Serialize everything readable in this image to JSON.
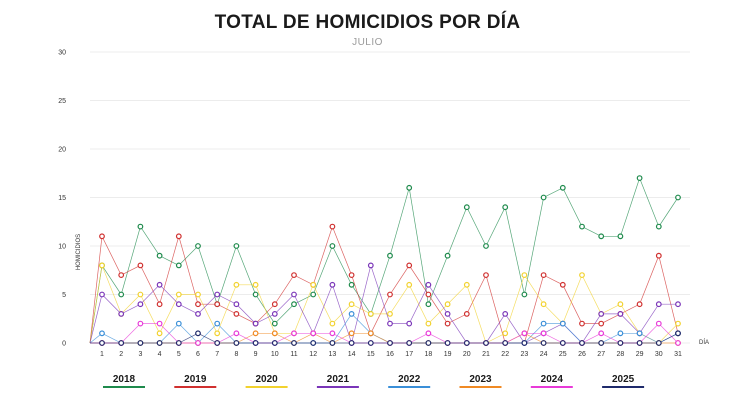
{
  "chart_data": {
    "type": "line",
    "title": "TOTAL DE HOMICIDIOS POR DÍA",
    "subtitle": "JULIO",
    "xlabel": "DÍA",
    "ylabel": "HOMICIDIOS",
    "x": [
      1,
      2,
      3,
      4,
      5,
      6,
      7,
      8,
      9,
      10,
      11,
      12,
      13,
      14,
      15,
      16,
      17,
      18,
      19,
      20,
      21,
      22,
      23,
      24,
      25,
      26,
      27,
      28,
      29,
      30,
      31
    ],
    "ylim": [
      0,
      30
    ],
    "yticks": [
      0,
      5,
      10,
      15,
      20,
      25,
      30
    ],
    "grid": true,
    "legend_position": "bottom",
    "series": [
      {
        "name": "2018",
        "color": "#1e8a4c",
        "values": [
          8,
          5,
          12,
          9,
          8,
          10,
          4,
          10,
          5,
          2,
          4,
          5,
          10,
          6,
          3,
          9,
          16,
          4,
          9,
          14,
          10,
          14,
          5,
          15,
          16,
          12,
          11,
          11,
          17,
          12,
          15
        ]
      },
      {
        "name": "2019",
        "color": "#d0302f",
        "values": [
          11,
          7,
          8,
          4,
          11,
          4,
          4,
          3,
          2,
          4,
          7,
          6,
          12,
          7,
          1,
          5,
          8,
          5,
          2,
          3,
          7,
          0,
          0,
          7,
          6,
          2,
          2,
          3,
          4,
          9,
          1
        ]
      },
      {
        "name": "2020",
        "color": "#f2d22e",
        "values": [
          8,
          3,
          5,
          1,
          5,
          5,
          1,
          6,
          6,
          1,
          1,
          6,
          2,
          4,
          3,
          3,
          6,
          2,
          4,
          6,
          0,
          1,
          7,
          4,
          2,
          7,
          3,
          4,
          1,
          0,
          2
        ]
      },
      {
        "name": "2021",
        "color": "#7a35b8",
        "values": [
          5,
          3,
          4,
          6,
          4,
          3,
          5,
          4,
          2,
          3,
          5,
          1,
          6,
          0,
          8,
          2,
          2,
          6,
          3,
          0,
          0,
          3,
          0,
          1,
          2,
          0,
          3,
          3,
          1,
          4,
          4
        ]
      },
      {
        "name": "2022",
        "color": "#3a8fd8",
        "values": [
          1,
          0,
          0,
          0,
          2,
          0,
          2,
          0,
          0,
          0,
          0,
          0,
          0,
          3,
          1,
          0,
          0,
          0,
          0,
          0,
          0,
          0,
          0,
          2,
          2,
          0,
          0,
          1,
          1,
          0,
          1
        ]
      },
      {
        "name": "2023",
        "color": "#f08a24",
        "values": [
          0,
          0,
          0,
          0,
          0,
          0,
          0,
          0,
          1,
          1,
          0,
          1,
          0,
          1,
          1,
          0,
          0,
          0,
          0,
          0,
          0,
          0,
          1,
          0,
          0,
          0,
          0,
          0,
          0,
          0,
          0
        ]
      },
      {
        "name": "2024",
        "color": "#e83ad8",
        "values": [
          0,
          0,
          2,
          2,
          0,
          0,
          0,
          1,
          0,
          0,
          1,
          1,
          1,
          0,
          0,
          0,
          0,
          1,
          0,
          0,
          0,
          0,
          1,
          1,
          0,
          0,
          1,
          0,
          0,
          2,
          0
        ]
      },
      {
        "name": "2025",
        "color": "#1f2a6b",
        "values": [
          0,
          0,
          0,
          0,
          0,
          1,
          0,
          0,
          0,
          0,
          0,
          0,
          0,
          0,
          0,
          0,
          0,
          0,
          0,
          0,
          0,
          0,
          0,
          0,
          0,
          0,
          0,
          0,
          0,
          0,
          1
        ]
      }
    ]
  }
}
